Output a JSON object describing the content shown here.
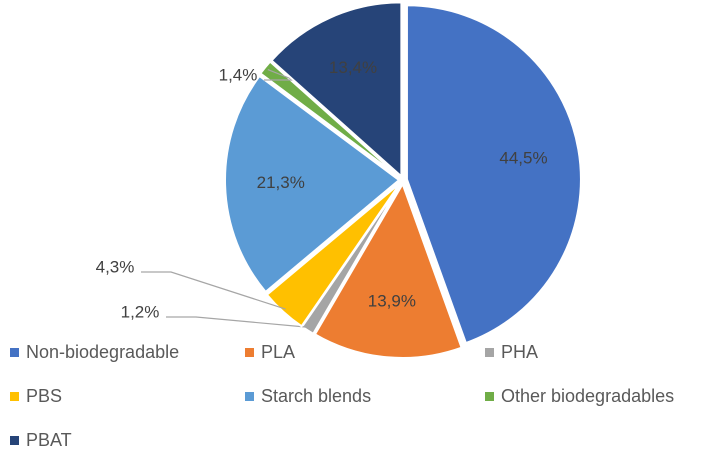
{
  "chart_data": {
    "type": "pie",
    "categories": [
      "Non-biodegradable",
      "PLA",
      "PHA",
      "PBS",
      "Starch blends",
      "Other biodegradables",
      "PBAT"
    ],
    "values": [
      44.5,
      13.9,
      1.2,
      4.3,
      21.3,
      1.4,
      13.4
    ],
    "value_labels": [
      "44,5%",
      "13,9%",
      "1,2%",
      "4,3%",
      "21,3%",
      "1,4%",
      "13,4%"
    ],
    "colors": [
      "#4472c4",
      "#ed7d31",
      "#a5a5a5",
      "#ffc000",
      "#5b9bd5",
      "#70ad47",
      "#264478"
    ],
    "legend": "bottom"
  }
}
